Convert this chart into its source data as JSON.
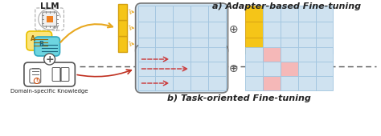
{
  "bg_color": "#ffffff",
  "title_a": "a) Adapter-based Fine-tuning",
  "title_b": "b) Task-oriented Fine-tuning",
  "llm_label": "LLM",
  "domain_label": "Domain-specific Knowledge",
  "grid_blue_fill": "#cfe2f0",
  "grid_blue_edge": "#a0c4df",
  "grid_orange_fill": "#f5c518",
  "grid_orange_edge": "#d4a010",
  "grid_pink_fill": "#f5b8b8",
  "arrow_orange": "#e8a820",
  "arrow_red": "#cc3333",
  "sep_color": "#555555",
  "text_color": "#222222",
  "icon_dashed_color": "#aaaaaa",
  "bubble_yellow_fill": "#fce47a",
  "bubble_yellow_edge": "#e8c000",
  "bubble_teal_fill": "#6dd5e0",
  "bubble_teal_edge": "#30a8c0",
  "domain_box_fill": "#ffffff",
  "domain_box_edge": "#555555",
  "llm_box_color": "#aaaaaa"
}
